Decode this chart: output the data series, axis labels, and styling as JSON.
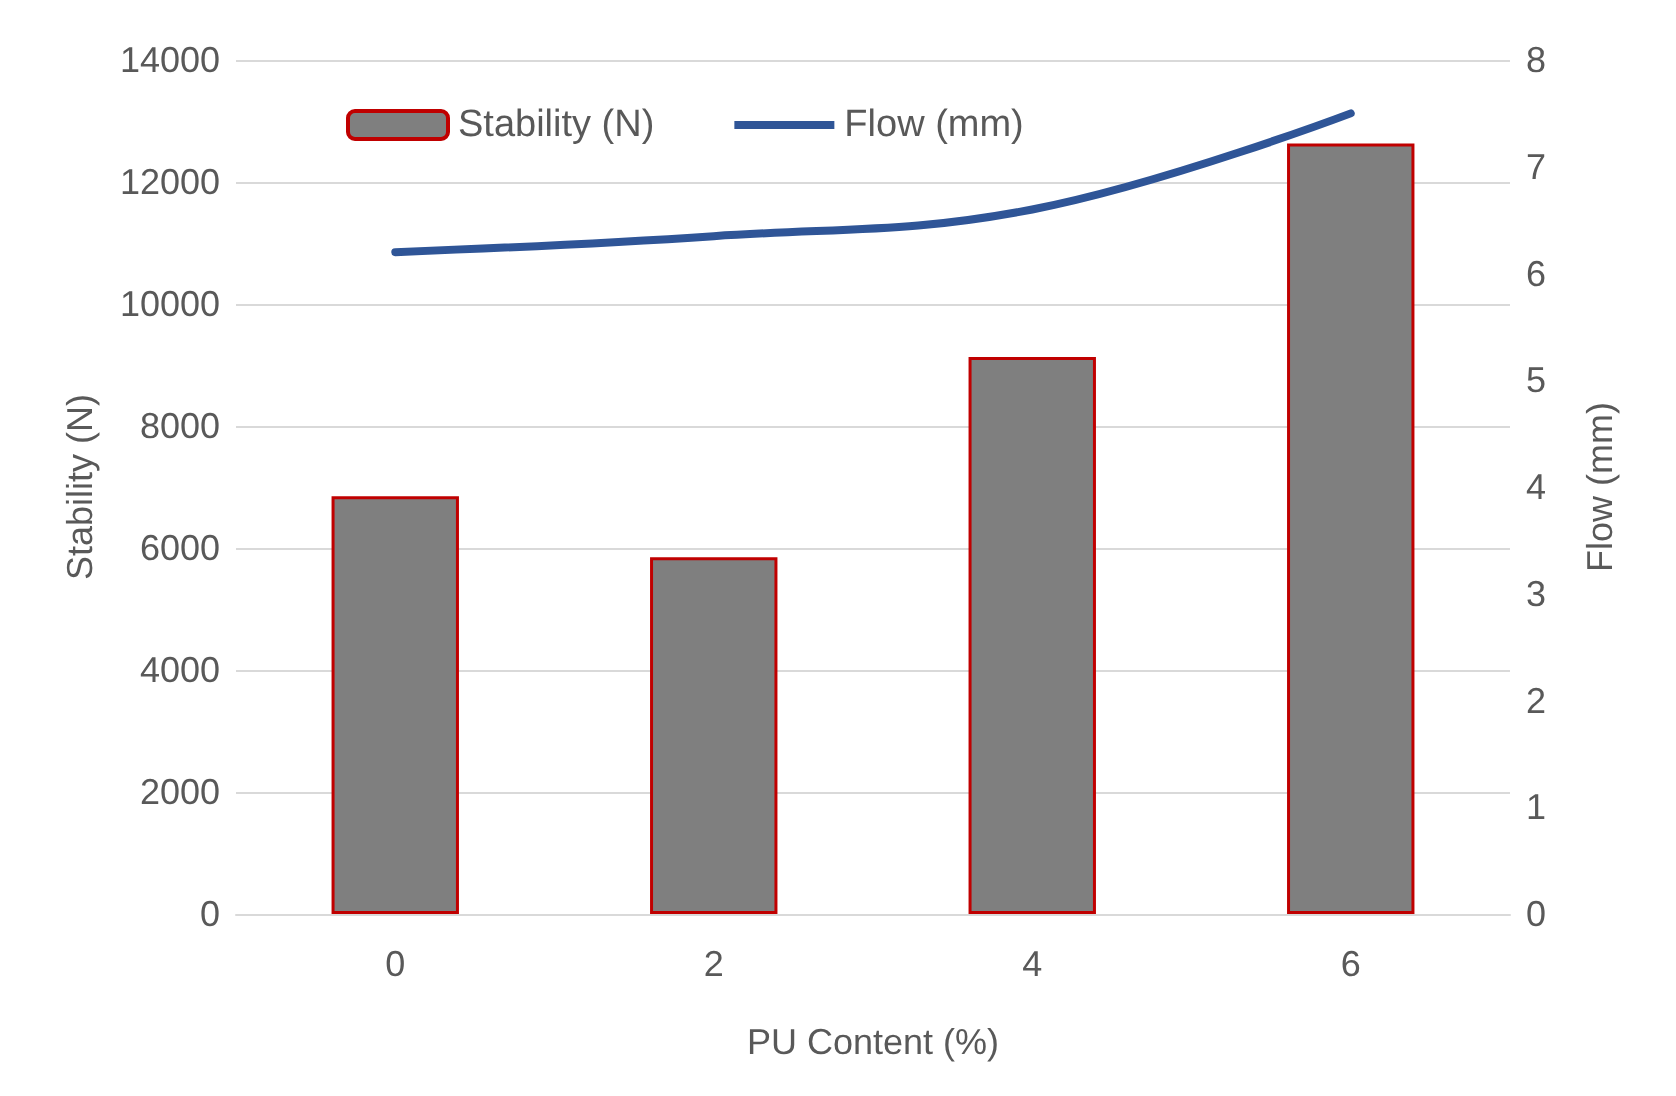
{
  "chart_data": {
    "type": "bar",
    "xlabel": "PU Content (%)",
    "ylabel": "Stability (N)",
    "y2label": "Flow (mm)",
    "categories": [
      "0",
      "2",
      "4",
      "6"
    ],
    "series": [
      {
        "name": "Stability (N)",
        "color": "#7f7f7f",
        "values": [
          6850,
          5850,
          9130,
          12630
        ]
      },
      {
        "name": "Flow (mm)",
        "type": "line",
        "axis": "y2",
        "color": "#2f5597",
        "values": [
          6.2,
          6.35,
          6.6,
          7.5
        ]
      }
    ],
    "ylim": [
      0,
      14000
    ],
    "yticks": [
      0,
      2000,
      4000,
      6000,
      8000,
      10000,
      12000,
      14000
    ],
    "y2lim": [
      0,
      8
    ],
    "y2ticks": [
      0,
      1,
      2,
      3,
      4,
      5,
      6,
      7,
      8
    ],
    "grid": "y",
    "legend": "top",
    "marker": "none"
  }
}
